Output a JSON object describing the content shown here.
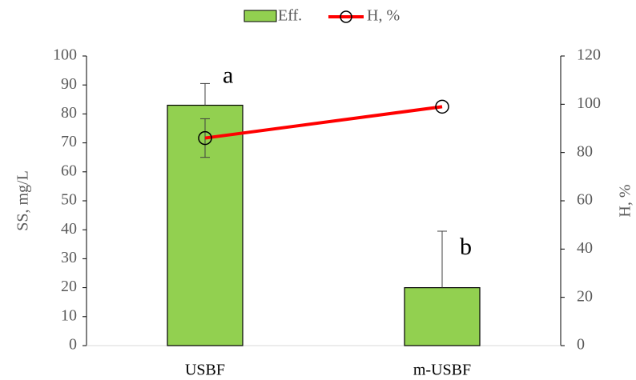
{
  "chart_data": {
    "type": "bar",
    "categories": [
      "USBF",
      "m-USBF"
    ],
    "series": [
      {
        "name": "Eff.",
        "type": "bar",
        "color": "#92d050",
        "values": [
          83,
          20
        ],
        "error": [
          7.5,
          19.5
        ]
      },
      {
        "name": "H, %",
        "type": "line",
        "axis": "y2",
        "color": "#ff0000",
        "values": [
          86,
          99
        ],
        "error": [
          8,
          null
        ]
      }
    ],
    "annotations": [
      "a",
      "b"
    ],
    "y_label": "SS, mg/L",
    "y2_label": "H, %",
    "ylim": [
      0,
      100
    ],
    "yticks": [
      0,
      10,
      20,
      30,
      40,
      50,
      60,
      70,
      80,
      90,
      100
    ],
    "y2lim": [
      0,
      120
    ],
    "y2ticks": [
      0,
      20,
      40,
      60,
      80,
      100,
      120
    ],
    "legend": "top",
    "grid": false
  }
}
